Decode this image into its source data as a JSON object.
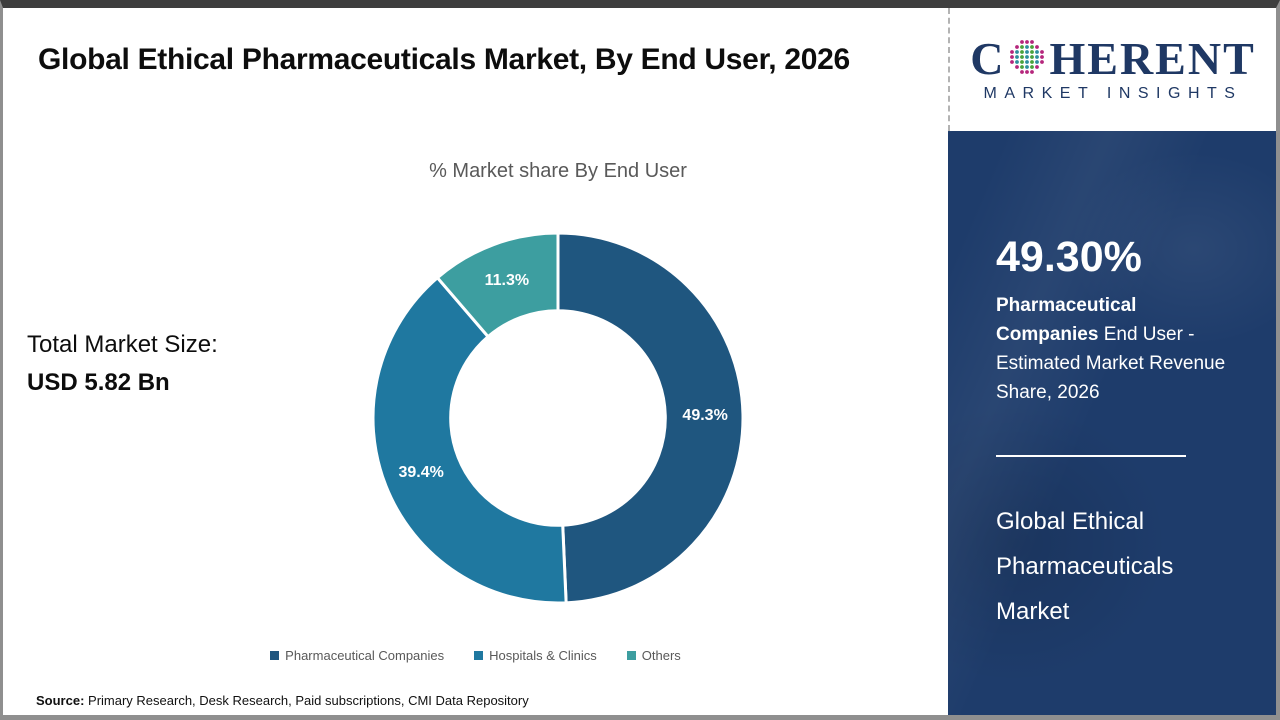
{
  "header": {
    "title": "Global Ethical Pharmaceuticals Market, By End User, 2026"
  },
  "logo": {
    "brand_prefix": "C",
    "brand_suffix": "HERENT",
    "brand_sub": "MARKET INSIGHTS",
    "brand_color": "#1f3864",
    "globe_dot_colors": {
      "outer": "#b5267c",
      "inner": "#2e8f9e",
      "accent": "#4ba23c"
    }
  },
  "main": {
    "total_market_label": "Total Market Size:",
    "total_market_value": "USD 5.82 Bn",
    "source_label": "Source:",
    "source_text": " Primary Research, Desk Research, Paid subscriptions, CMI Data Repository"
  },
  "chart_data": {
    "type": "pie",
    "subtype": "donut",
    "title": "% Market share By End User",
    "categories": [
      "Pharmaceutical Companies",
      "Hospitals & Clinics",
      "Others"
    ],
    "values": [
      49.3,
      39.4,
      11.3
    ],
    "data_labels": [
      "49.3%",
      "39.4%",
      "11.3%"
    ],
    "colors": [
      "#1f567f",
      "#1f78a0",
      "#3d9ea0"
    ],
    "start_angle_deg": 0,
    "direction": "clockwise",
    "inner_radius_ratio": 0.58,
    "legend_position": "bottom",
    "data_label_color": "#ffffff"
  },
  "sidebar": {
    "background_color": "#1e3c6b",
    "stat_value": "49.30%",
    "stat_bold": "Pharmaceutical Companies",
    "stat_rest": " End User - Estimated Market Revenue Share, 2026",
    "footer_title": "Global Ethical Pharmaceuticals Market"
  }
}
